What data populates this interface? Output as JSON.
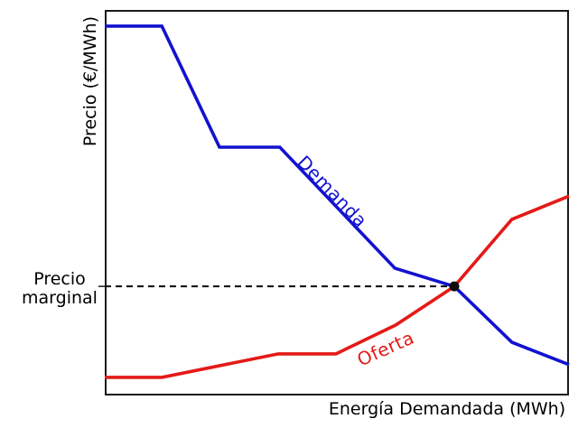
{
  "axes": {
    "ylabel": "Precio (€/MWh)",
    "xlabel": "Energía Demandada (MWh)"
  },
  "annotations": {
    "marginal_line1": "Precio",
    "marginal_line2": "marginal"
  },
  "curves": {
    "demand_label": "Demanda",
    "supply_label": "Oferta"
  },
  "colors": {
    "demand": "#1212d0",
    "supply": "#e41a17",
    "guide": "#000000",
    "equilibrium_dot": "#0d0d0d",
    "spine": "#1a1a1a"
  },
  "chart_data": {
    "type": "line",
    "title": "",
    "xlabel": "Energía Demandada (MWh)",
    "ylabel": "Precio (€/MWh)",
    "axis_numeric": false,
    "grid": false,
    "legend": "inline-rotated-labels",
    "xlim": [
      0,
      1
    ],
    "ylim": [
      0,
      1
    ],
    "series": [
      {
        "name": "Demanda",
        "color": "#1212d0",
        "points": [
          [
            0,
            0.958
          ],
          [
            0.123,
            0.958
          ],
          [
            0.247,
            0.644
          ],
          [
            0.377,
            0.644
          ],
          [
            0.625,
            0.33
          ],
          [
            0.753,
            0.283
          ],
          [
            0.877,
            0.138
          ],
          [
            1,
            0.08
          ]
        ]
      },
      {
        "name": "Oferta",
        "color": "#e41a17",
        "points": [
          [
            0,
            0.047
          ],
          [
            0.123,
            0.047
          ],
          [
            0.374,
            0.108
          ],
          [
            0.498,
            0.108
          ],
          [
            0.627,
            0.183
          ],
          [
            0.753,
            0.283
          ],
          [
            0.877,
            0.457
          ],
          [
            1,
            0.517
          ]
        ]
      }
    ],
    "equilibrium": {
      "x": 0.753,
      "y": 0.283,
      "label": "Precio marginal",
      "guide_style": "dashed-horizontal-from-y-axis"
    }
  }
}
